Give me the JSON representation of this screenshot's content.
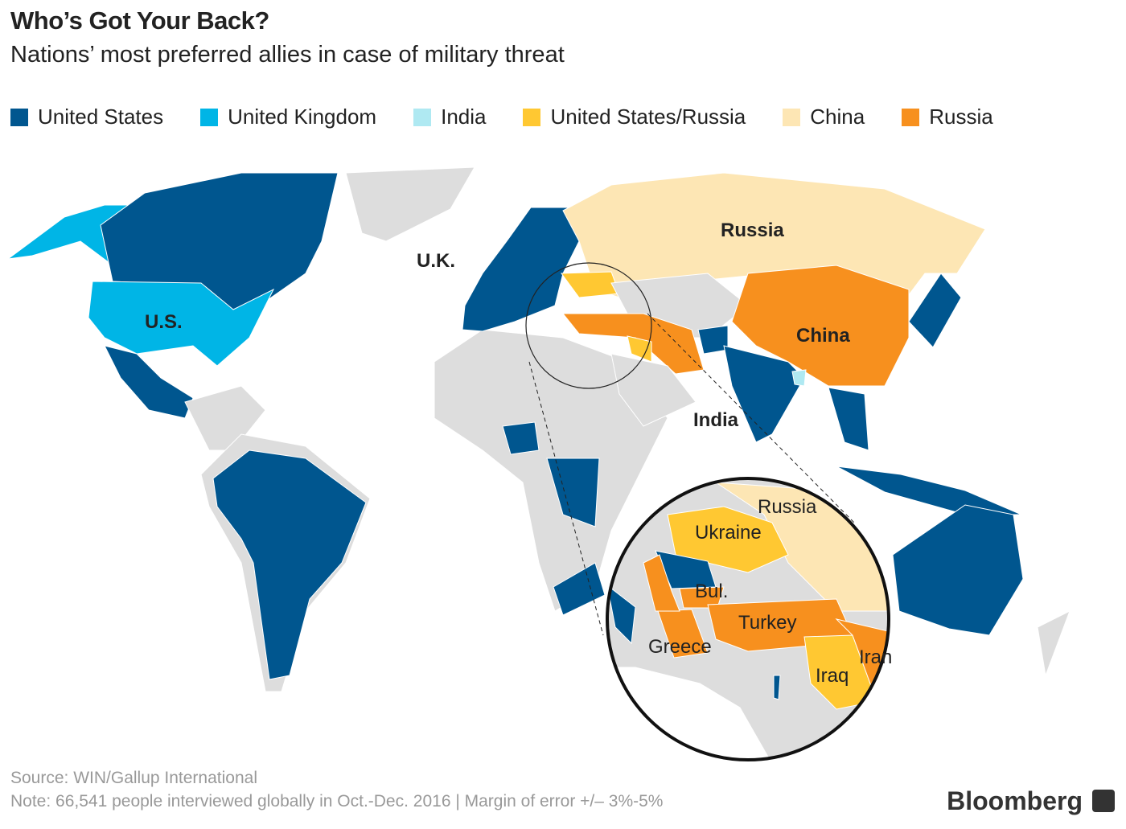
{
  "title": "Who’s Got Your Back?",
  "subtitle": "Nations’ most preferred allies in case of military threat",
  "legend": [
    {
      "label": "United States",
      "color": "#00568f"
    },
    {
      "label": "United Kingdom",
      "color": "#00b5e6"
    },
    {
      "label": "India",
      "color": "#afe9f2"
    },
    {
      "label": "United States/Russia",
      "color": "#ffc832"
    },
    {
      "label": "China",
      "color": "#fde6b4"
    },
    {
      "label": "Russia",
      "color": "#f7901e"
    }
  ],
  "map_labels": {
    "us": "U.S.",
    "uk": "U.K.",
    "russia": "Russia",
    "china": "China",
    "india": "India"
  },
  "inset_labels": {
    "russia": "Russia",
    "ukraine": "Ukraine",
    "bulgaria": "Bul.",
    "turkey": "Turkey",
    "greece": "Greece",
    "iran": "Iran",
    "iraq": "Iraq"
  },
  "footer": {
    "source": "Source: WIN/Gallup International",
    "note": "Note: 66,541 people interviewed globally in Oct.-Dec. 2016 | Margin of error +/– 3%-5%",
    "brand": "Bloomberg"
  },
  "colors": {
    "no_data": "#dddddd"
  }
}
